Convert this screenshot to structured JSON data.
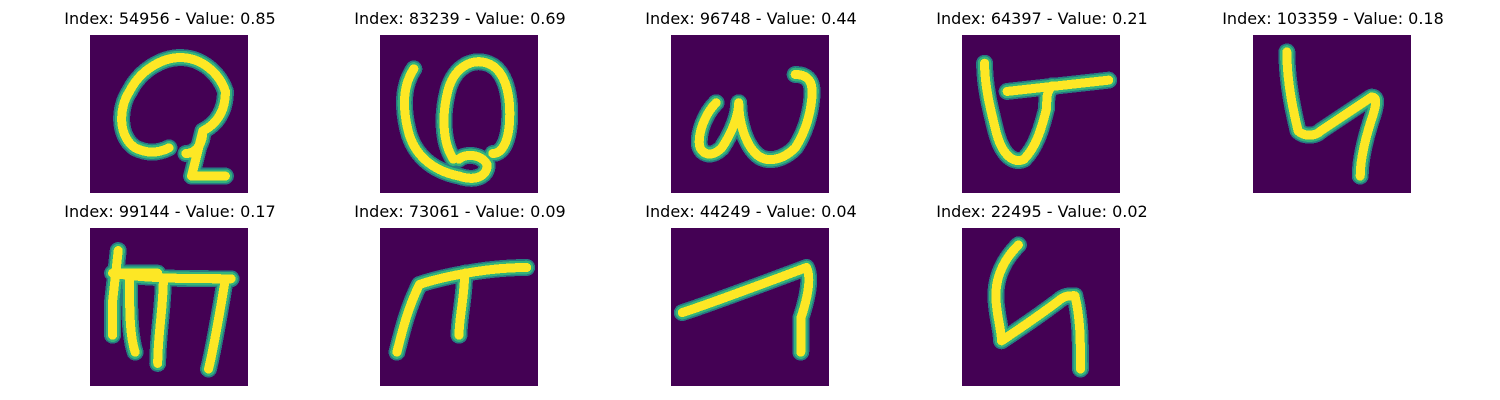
{
  "panels": [
    {
      "title": "Index: 54956 - Value: 0.85",
      "glyph": "looped-ascender-glyph"
    },
    {
      "title": "Index: 83239 - Value: 0.69",
      "glyph": "omega-like-glyph"
    },
    {
      "title": "Index: 96748 - Value: 0.44",
      "glyph": "w-shaped-glyph"
    },
    {
      "title": "Index: 64397 - Value: 0.21",
      "glyph": "v-with-bar-glyph"
    },
    {
      "title": "Index: 103359 - Value: 0.18",
      "glyph": "hooked-h-glyph"
    },
    {
      "title": "Index: 99144 - Value: 0.17",
      "glyph": "comb-m-glyph"
    },
    {
      "title": "Index: 73061 - Value: 0.09",
      "glyph": "pi-like-glyph"
    },
    {
      "title": "Index: 44249 - Value: 0.04",
      "glyph": "slanted-seven-glyph"
    },
    {
      "title": "Index: 22495 - Value: 0.02",
      "glyph": "zigzag-h-glyph"
    }
  ],
  "colors": {
    "background": "#440154",
    "stroke_core": "#fde725",
    "stroke_edge": "#35b779",
    "stroke_outer": "#21918c"
  }
}
